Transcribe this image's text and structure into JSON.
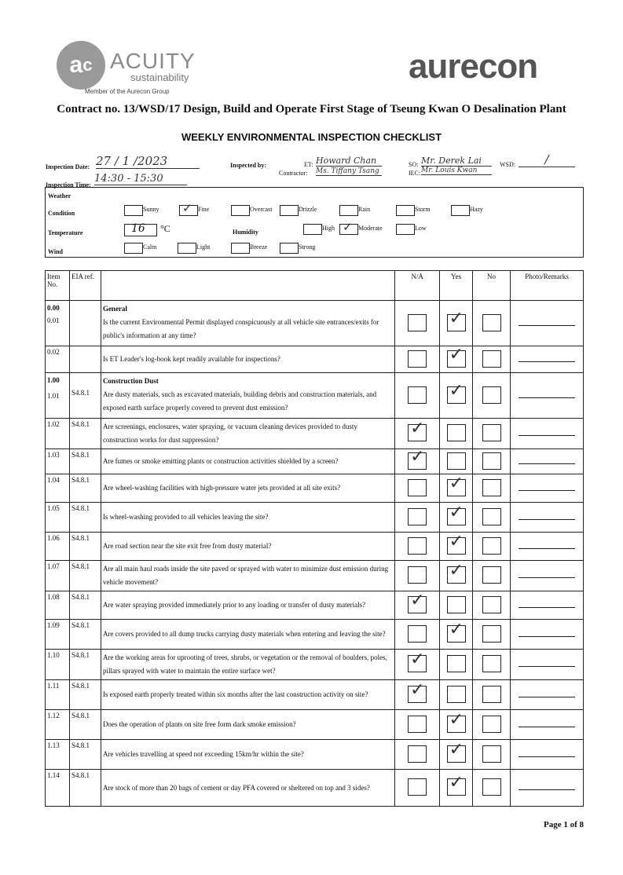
{
  "logos": {
    "acuity_mark": "acs",
    "acuity": "ACUITY",
    "sustainability": "sustainability",
    "member": "Member of the Aurecon Group",
    "aurecon": "aurecon"
  },
  "contract": "Contract no.  13/WSD/17 Design, Build and Operate First Stage of Tseung Kwan O Desalination Plant",
  "title": "WEEKLY ENVIRONMENTAL INSPECTION CHECKLIST",
  "info": {
    "date_label": "Inspection Date:",
    "date": "27 / 1 /2023",
    "time_label": "Inspection Time:",
    "time": "14:30 - 15:30",
    "inspected_by_label": "Inspected by:",
    "et_label": "ET:",
    "et": "Howard Chan",
    "contractor_label": "Contractor:",
    "contractor": "Ms. Tiffany Tsang",
    "so_label": "SO:",
    "so": "Mr. Derek Lai",
    "iec_label": "IEC:",
    "iec": "Mr. Louis Kwan",
    "wsd_label": "WSD:",
    "wsd": "/"
  },
  "weather": {
    "heading": "Weather",
    "condition_label": "Condition",
    "conditions": [
      {
        "label": "Sunny",
        "checked": false
      },
      {
        "label": "Fine",
        "checked": true
      },
      {
        "label": "Overcast",
        "checked": false
      },
      {
        "label": "Drizzle",
        "checked": false
      },
      {
        "label": "Rain",
        "checked": false
      },
      {
        "label": "Storm",
        "checked": false
      },
      {
        "label": "Hazy",
        "checked": false
      }
    ],
    "temperature_label": "Temperature",
    "temperature": "16",
    "temperature_unit": "°C",
    "humidity_label": "Humidity",
    "humidity": [
      {
        "label": "High",
        "checked": false
      },
      {
        "label": "Moderate",
        "checked": true
      },
      {
        "label": "Low",
        "checked": false
      }
    ],
    "wind_label": "Wind",
    "wind": [
      {
        "label": "Calm",
        "checked": false
      },
      {
        "label": "Light",
        "checked": false
      },
      {
        "label": "Breeze",
        "checked": false
      },
      {
        "label": "Strong",
        "checked": false
      }
    ]
  },
  "table": {
    "headers": {
      "item": "Item No.",
      "eia": "EIA ref.",
      "na": "N/A",
      "yes": "Yes",
      "no": "No",
      "remarks": "Photo/Remarks"
    },
    "rows": [
      {
        "item": "0.00",
        "item2": "0.01",
        "eia": "",
        "section": "General",
        "q": "Is the current Environmental Permit displayed conspicuously at all vehicle site entrances/exits for public's information at any time?",
        "ans": "yes"
      },
      {
        "item": "0.02",
        "eia": "",
        "q": "Is ET Leader's log-book kept readily available for inspections?",
        "ans": "yes"
      },
      {
        "item": "1.00",
        "item2": "1.01",
        "eia": "S4.8.1",
        "section": "Construction Dust",
        "q": "Are dusty materials, such as excavated materials, building debris and construction materials, and exposed earth surface properly covered to prevent dust emission?",
        "ans": "yes"
      },
      {
        "item": "1.02",
        "eia": "S4.8.1",
        "q": "Are screenings, enclosures, water spraying, or vacuum cleaning devices provided to dusty construction works for dust suppression?",
        "ans": "na"
      },
      {
        "item": "1.03",
        "eia": "S4.8.1",
        "q": "Are fumes or smoke emitting plants or construction activities shielded by a screen?",
        "ans": "na"
      },
      {
        "item": "1.04",
        "eia": "S4.8.1",
        "q": "Are wheel-washing facilities with high-pressure water jets provided at all site exits?",
        "ans": "yes"
      },
      {
        "item": "1.05",
        "eia": "S4.8.1",
        "q": "Is wheel-washing provided to all vehicles leaving the site?",
        "ans": "yes"
      },
      {
        "item": "1.06",
        "eia": "S4.8.1",
        "q": "Are road section near the site exit free from dusty material?",
        "ans": "yes"
      },
      {
        "item": "1.07",
        "eia": "S4.8.1",
        "q": "Are all main haul roads inside the site paved or sprayed with water to minimize dust emission during vehicle movement?",
        "ans": "yes"
      },
      {
        "item": "1.08",
        "eia": "S4.8.1",
        "q": "Are water spraying provided immediately prior to any loading or transfer of dusty materials?",
        "ans": "na"
      },
      {
        "item": "1.09",
        "eia": "S4.8.1",
        "q": "Are covers provided to all dump trucks carrying dusty materials when entering and leaving the site?",
        "ans": "yes"
      },
      {
        "item": "1.10",
        "eia": "S4.8.1",
        "q": "Are the working areas for uprooting of trees, shrubs, or vegetation or the removal of boulders, poles, pillars sprayed with water to maintain the entire surface wet?",
        "ans": "na"
      },
      {
        "item": "1.11",
        "eia": "S4.8.1",
        "q": "Is exposed earth properly treated within six months after the last construction activity on site?",
        "ans": "na"
      },
      {
        "item": "1.12",
        "eia": "S4.8.1",
        "q": "Does the operation of plants on site free form dark smoke emission?",
        "ans": "yes"
      },
      {
        "item": "1.13",
        "eia": "S4.8.1",
        "q": "Are vehicles travelling at speed not exceeding 15km/hr within the site?",
        "ans": "yes"
      },
      {
        "item": "1.14",
        "eia": "S4.8.1",
        "q": "Are stock of more than 20 bags of cement or day PFA covered or sheltered on top and 3 sides?",
        "ans": "yes"
      }
    ]
  },
  "footer": "Page 1 of 8",
  "tick": "✓"
}
